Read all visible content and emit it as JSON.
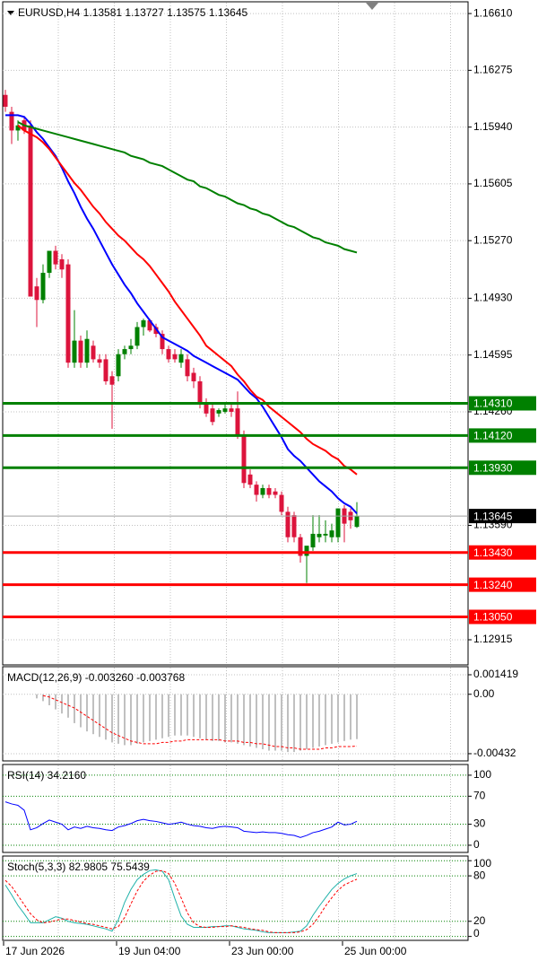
{
  "chart_data": [
    {
      "type": "candlestick",
      "title": "EURUSD,H4 1.13581 1.13727 1.13575 1.13645",
      "categories": [
        "17 Jun 2026",
        null,
        null,
        null,
        null,
        null,
        null,
        null,
        null,
        null,
        null,
        null,
        null,
        null,
        null,
        null,
        null,
        null,
        "19 Jun 04:00",
        null,
        null,
        null,
        null,
        null,
        null,
        null,
        null,
        null,
        null,
        null,
        null,
        null,
        null,
        null,
        null,
        null,
        "23 Jun 00:00",
        null,
        null,
        null,
        null,
        null,
        null,
        null,
        null,
        null,
        null,
        null,
        null,
        null,
        null,
        null,
        null,
        null,
        "25 Jun 00:00",
        null,
        null
      ],
      "open": [
        1.1613,
        1.1603,
        1.1592,
        1.1598,
        1.1595,
        1.15,
        1.1492,
        1.1508,
        1.1521,
        1.1516,
        1.1513,
        1.1455,
        1.1468,
        1.1455,
        1.1465,
        1.1457,
        1.1457,
        1.1447,
        1.1447,
        1.146,
        1.1463,
        1.1465,
        1.1476,
        1.148,
        1.1476,
        1.1472,
        1.1463,
        1.146,
        1.1455,
        1.1457,
        1.1449,
        1.1444,
        1.1431,
        1.1428,
        1.1425,
        1.1426,
        1.1428,
        1.1428,
        1.1412,
        1.1389,
        1.1383,
        1.1377,
        1.1381,
        1.1379,
        1.1377,
        1.1367,
        1.1365,
        1.1352,
        1.1341,
        1.1346,
        1.1352,
        1.1353,
        1.1352,
        1.1352,
        1.1369,
        1.1367,
        1.13581
      ],
      "high": [
        1.1616,
        1.1606,
        1.1598,
        1.16,
        1.1598,
        1.1505,
        1.1513,
        1.1521,
        1.1524,
        1.1519,
        1.1516,
        1.1486,
        1.1471,
        1.1474,
        1.1468,
        1.146,
        1.146,
        1.145,
        1.1463,
        1.1465,
        1.1469,
        1.1479,
        1.1481,
        1.1481,
        1.1478,
        1.1474,
        1.1465,
        1.1463,
        1.1463,
        1.146,
        1.1452,
        1.1447,
        1.1434,
        1.1431,
        1.1428,
        1.1431,
        1.1431,
        1.1438,
        1.1415,
        1.1392,
        1.1385,
        1.1383,
        1.1383,
        1.1381,
        1.1379,
        1.137,
        1.1367,
        1.1354,
        1.1346,
        1.1365,
        1.1365,
        1.1362,
        1.136,
        1.1369,
        1.1371,
        1.1369,
        1.13727
      ],
      "low": [
        1.1603,
        1.1584,
        1.1586,
        1.159,
        1.1494,
        1.1476,
        1.149,
        1.1505,
        1.151,
        1.1505,
        1.1452,
        1.1452,
        1.1452,
        1.1452,
        1.1455,
        1.1452,
        1.1442,
        1.1416,
        1.1444,
        1.1457,
        1.146,
        1.1463,
        1.1471,
        1.1473,
        1.147,
        1.146,
        1.1455,
        1.1455,
        1.1452,
        1.1444,
        1.144,
        1.1428,
        1.1423,
        1.1418,
        1.1423,
        1.1425,
        1.1423,
        1.141,
        1.1381,
        1.1381,
        1.1373,
        1.1375,
        1.1375,
        1.1375,
        1.1365,
        1.1349,
        1.1349,
        1.1337,
        1.1325,
        1.1344,
        1.1349,
        1.1349,
        1.1349,
        1.1349,
        1.1349,
        1.1357,
        1.13575
      ],
      "close": [
        1.1606,
        1.1592,
        1.1595,
        1.1592,
        1.1494,
        1.1492,
        1.1508,
        1.1521,
        1.1513,
        1.151,
        1.1455,
        1.1468,
        1.1455,
        1.1469,
        1.1457,
        1.1455,
        1.1444,
        1.1442,
        1.146,
        1.1463,
        1.1465,
        1.1476,
        1.148,
        1.1474,
        1.1472,
        1.1463,
        1.1457,
        1.1457,
        1.146,
        1.1447,
        1.1444,
        1.1431,
        1.1425,
        1.142,
        1.1427,
        1.1428,
        1.1426,
        1.1412,
        1.1384,
        1.1383,
        1.1377,
        1.1381,
        1.1377,
        1.1377,
        1.1367,
        1.1352,
        1.1352,
        1.1341,
        1.1347,
        1.1354,
        1.1354,
        1.1354,
        1.1356,
        1.1369,
        1.136,
        1.1362,
        1.13645
      ],
      "up_color": "#008000",
      "down_color": "#dc143c",
      "series": [
        {
          "color": "#0000ff",
          "values": [
            1.1601,
            1.1601,
            1.1601,
            1.16,
            1.1596,
            1.1591,
            1.1587,
            1.1582,
            1.1577,
            1.157,
            1.1562,
            1.1555,
            1.1547,
            1.154,
            1.1534,
            1.1527,
            1.152,
            1.1513,
            1.1507,
            1.1501,
            1.1496,
            1.149,
            1.1485,
            1.148,
            1.1475,
            1.147,
            1.1468,
            1.1466,
            1.1464,
            1.1462,
            1.1459,
            1.1457,
            1.1455,
            1.1453,
            1.1451,
            1.1449,
            1.1447,
            1.1445,
            1.1441,
            1.1437,
            1.1434,
            1.1429,
            1.1423,
            1.1417,
            1.1411,
            1.1404,
            1.14,
            1.1397,
            1.1393,
            1.1389,
            1.1385,
            1.1382,
            1.1379,
            1.1375,
            1.1372,
            1.137,
            1.1366
          ]
        },
        {
          "color": "#ff0000",
          "values": [
            null,
            null,
            1.1595,
            1.1592,
            1.159,
            1.1588,
            1.1585,
            1.1581,
            1.1576,
            1.1571,
            1.1566,
            1.1561,
            1.1557,
            1.1552,
            1.1547,
            1.1543,
            1.1538,
            1.1534,
            1.153,
            1.1527,
            1.1523,
            1.1519,
            1.1516,
            1.1512,
            1.1507,
            1.1502,
            1.1497,
            1.1491,
            1.1486,
            1.1481,
            1.1476,
            1.1471,
            1.1465,
            1.1462,
            1.1459,
            1.1456,
            1.1453,
            1.1448,
            1.1444,
            1.1439,
            1.1435,
            1.1433,
            1.1429,
            1.1426,
            1.1423,
            1.142,
            1.1417,
            1.1414,
            1.141,
            1.1407,
            1.1405,
            1.1403,
            1.14,
            1.1398,
            1.1394,
            1.1392,
            1.1389
          ]
        },
        {
          "color": "#008000",
          "values": [
            null,
            null,
            1.1597,
            1.1595,
            1.1594,
            1.1593,
            1.1592,
            1.1591,
            1.159,
            1.1589,
            1.1588,
            1.1587,
            1.1586,
            1.1585,
            1.1584,
            1.1583,
            1.1582,
            1.1581,
            1.158,
            1.1579,
            1.1577,
            1.1576,
            1.1575,
            1.1573,
            1.1572,
            1.1571,
            1.1569,
            1.1567,
            1.1565,
            1.1563,
            1.1562,
            1.1559,
            1.1558,
            1.1556,
            1.1554,
            1.1553,
            1.1551,
            1.1549,
            1.1548,
            1.1546,
            1.1545,
            1.1543,
            1.1542,
            1.154,
            1.1538,
            1.1536,
            1.1535,
            1.1533,
            1.1531,
            1.1529,
            1.1528,
            1.1526,
            1.1525,
            1.1524,
            1.1522,
            1.1521,
            1.152
          ]
        }
      ],
      "levels": [
        {
          "value": 1.1431,
          "label": "1.14310",
          "color": "#008000"
        },
        {
          "value": 1.1412,
          "label": "1.14120",
          "color": "#008000"
        },
        {
          "value": 1.1393,
          "label": "1.13930",
          "color": "#008000"
        },
        {
          "value": 1.1343,
          "label": "1.13430",
          "color": "#ff0000"
        },
        {
          "value": 1.1324,
          "label": "1.13240",
          "color": "#ff0000"
        },
        {
          "value": 1.1305,
          "label": "1.13050",
          "color": "#ff0000"
        }
      ],
      "current": {
        "value": 1.13645,
        "label": "1.13645"
      },
      "ylim": [
        1.12772,
        1.16674
      ],
      "yticks": [
        {
          "value": 1.1661,
          "label": "1.16610"
        },
        1.16275,
        {
          "value": 1.1594,
          "label": "1.15940"
        },
        1.15605,
        {
          "value": 1.1527,
          "label": "1.15270"
        },
        {
          "value": 1.1493,
          "label": "1.14930"
        },
        1.14595,
        {
          "value": 1.1426,
          "label": "1.14260"
        },
        {
          "value": 1.1359,
          "label": "1.13590"
        },
        1.12915
      ],
      "grid": true
    },
    {
      "type": "macd",
      "title": "MACD(12,26,9) -0.003260 -0.003768",
      "series": [
        {
          "color": "#c0c0c0",
          "style": "histogram",
          "values": [
            null,
            null,
            null,
            null,
            null,
            -0.0003,
            -0.0005,
            -0.0008,
            -0.0011,
            -0.0014,
            -0.0017,
            -0.0021,
            -0.0024,
            -0.0027,
            -0.0029,
            -0.0031,
            -0.0033,
            -0.0035,
            -0.0036,
            -0.0037,
            -0.0037,
            -0.0036,
            -0.0035,
            -0.0034,
            -0.0033,
            -0.0032,
            -0.0031,
            -0.003,
            -0.003,
            -0.003,
            -0.0031,
            -0.0032,
            -0.0033,
            -0.0034,
            -0.0034,
            -0.0035,
            -0.0035,
            -0.0036,
            -0.0037,
            -0.0038,
            -0.0039,
            -0.004,
            -0.0041,
            -0.0041,
            -0.0041,
            -0.0042,
            -0.0042,
            -0.0041,
            -0.004,
            -0.0039,
            -0.0038,
            -0.0037,
            -0.0036,
            -0.0035,
            -0.0034,
            -0.0033,
            -0.00326
          ]
        },
        {
          "color": "#ff0000",
          "style": "dashed",
          "values": [
            null,
            null,
            null,
            null,
            null,
            null,
            -0.0001,
            -0.0002,
            -0.0004,
            -0.0006,
            -0.0008,
            -0.001,
            -0.0013,
            -0.0016,
            -0.0019,
            -0.0022,
            -0.0025,
            -0.0028,
            -0.003,
            -0.0032,
            -0.0034,
            -0.0035,
            -0.0036,
            -0.0036,
            -0.0036,
            -0.0035,
            -0.0035,
            -0.0034,
            -0.0034,
            -0.0033,
            -0.0033,
            -0.0033,
            -0.0033,
            -0.0033,
            -0.0033,
            -0.0034,
            -0.0034,
            -0.0034,
            -0.0035,
            -0.0035,
            -0.0036,
            -0.0036,
            -0.0037,
            -0.0038,
            -0.0038,
            -0.0039,
            -0.0039,
            -0.004,
            -0.004,
            -0.004,
            -0.004,
            -0.0039,
            -0.0039,
            -0.0038,
            -0.0038,
            -0.0038,
            -0.003768
          ]
        }
      ],
      "ylim": [
        -0.00478,
        0.00194
      ],
      "yticks": [
        0.001419,
        {
          "value": 0,
          "label": "0.00"
        },
        -0.00432
      ],
      "grid": true
    },
    {
      "type": "line",
      "title": "RSI(14) 34.2160",
      "series": [
        {
          "color": "#0000ff",
          "values": [
            62,
            59,
            57,
            50,
            22,
            25,
            31,
            36,
            33,
            30,
            22,
            26,
            24,
            27,
            25,
            24,
            22,
            21,
            26,
            28,
            31,
            35,
            37,
            35,
            34,
            32,
            30,
            31,
            33,
            30,
            28,
            27,
            25,
            24,
            26,
            27,
            26,
            25,
            20,
            19,
            18,
            19,
            18,
            18,
            17,
            15,
            14,
            11,
            14,
            18,
            20,
            23,
            26,
            33,
            29,
            30,
            34.216
          ]
        }
      ],
      "ylim": [
        -9,
        114
      ],
      "yticks": [
        100,
        70,
        30,
        0
      ],
      "grid": true
    },
    {
      "type": "line",
      "title": "Stoch(5,3,3) 82.9805 75.5439",
      "series": [
        {
          "color": "#20b2aa",
          "values": [
            68,
            55,
            41,
            30,
            18,
            18,
            18,
            22,
            26,
            24,
            20,
            18,
            17,
            16,
            14,
            12,
            10,
            7,
            22,
            45,
            62,
            75,
            82,
            87,
            88,
            86,
            75,
            50,
            27,
            16,
            12,
            12,
            12,
            13,
            13,
            14,
            14,
            12,
            10,
            9,
            8,
            6,
            5,
            5,
            5,
            5,
            6,
            7,
            14,
            28,
            40,
            51,
            62,
            70,
            76,
            80,
            82.9805
          ]
        },
        {
          "color": "#ff0000",
          "style": "dashed",
          "values": [
            74,
            66,
            54,
            42,
            30,
            22,
            18,
            19,
            21,
            23,
            23,
            21,
            19,
            17,
            16,
            14,
            12,
            10,
            13,
            25,
            43,
            60,
            73,
            81,
            86,
            87,
            83,
            70,
            51,
            31,
            18,
            13,
            12,
            12,
            13,
            13,
            14,
            13,
            12,
            10,
            9,
            8,
            6,
            5,
            5,
            5,
            5,
            6,
            9,
            16,
            27,
            40,
            51,
            61,
            68,
            72,
            75.5439
          ]
        }
      ],
      "ylim": [
        -4,
        105
      ],
      "yticks": [
        100,
        80,
        20,
        0
      ],
      "grid": true
    }
  ]
}
